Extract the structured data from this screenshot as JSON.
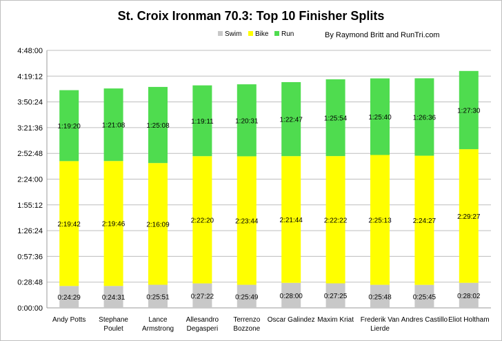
{
  "chart_data": {
    "type": "bar",
    "stacked": true,
    "title": "St. Croix Ironman 70.3: Top 10 Finisher Splits",
    "subtitle": "By Raymond Britt and RunTri.com",
    "xlabel": "",
    "ylabel": "",
    "ylim_seconds": [
      0,
      17280
    ],
    "y_tick_labels": [
      "0:00:00",
      "0:28:48",
      "0:57:36",
      "1:26:24",
      "1:55:12",
      "2:24:00",
      "2:52:48",
      "3:21:36",
      "3:50:24",
      "4:19:12",
      "4:48:00"
    ],
    "grid": true,
    "legend_position": "top",
    "categories": [
      [
        "Andy Potts"
      ],
      [
        "Stephane",
        "Poulet"
      ],
      [
        "Lance",
        "Armstrong"
      ],
      [
        "Allesandro",
        "Degasperi"
      ],
      [
        "Terrenzo",
        "Bozzone"
      ],
      [
        "Oscar Galindez"
      ],
      [
        "Maxim Kriat"
      ],
      [
        "Frederik Van",
        "Lierde"
      ],
      [
        "Andres Castillo"
      ],
      [
        "Eliot Holtham"
      ]
    ],
    "series": [
      {
        "name": "Swim",
        "color": "#c8c8c8",
        "labels": [
          "0:24:29",
          "0:24:31",
          "0:25:51",
          "0:27:22",
          "0:25:49",
          "0:28:00",
          "0:27:25",
          "0:25:48",
          "0:25:45",
          "0:28:02"
        ]
      },
      {
        "name": "Bike",
        "color": "#ffff00",
        "labels": [
          "2:19:42",
          "2:19:46",
          "2:16:09",
          "2:22:20",
          "2:23:44",
          "2:21:44",
          "2:22:22",
          "2:25:13",
          "2:24:27",
          "2:29:27"
        ]
      },
      {
        "name": "Run",
        "color": "#4fdc4f",
        "labels": [
          "1:19:20",
          "1:21:08",
          "1:25:08",
          "1:19:11",
          "1:20:31",
          "1:22:47",
          "1:25:54",
          "1:25:40",
          "1:26:36",
          "1:27:30"
        ]
      }
    ]
  }
}
